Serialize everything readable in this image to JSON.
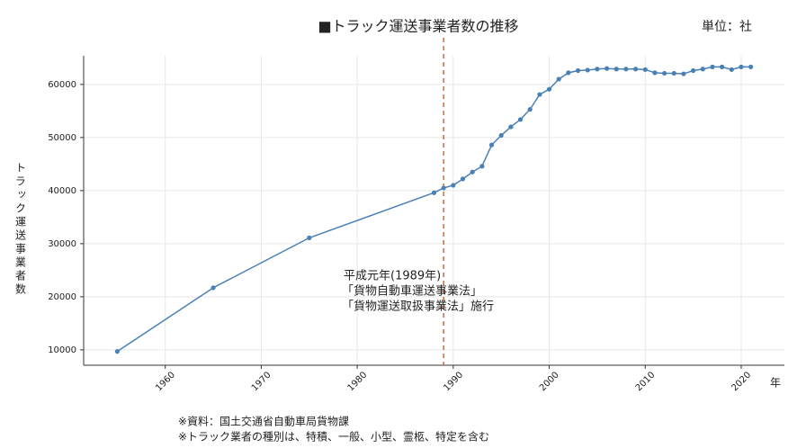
{
  "chart_data": {
    "type": "line",
    "title": "■トラック運送事業者数の推移",
    "unit_label": "単位：社",
    "y_label": "トラック運送事業者数",
    "x_label": "年",
    "x": [
      1955,
      1965,
      1975,
      1988,
      1989,
      1990,
      1991,
      1992,
      1993,
      1994,
      1995,
      1996,
      1997,
      1998,
      1999,
      2000,
      2001,
      2002,
      2003,
      2004,
      2005,
      2006,
      2007,
      2008,
      2009,
      2010,
      2011,
      2012,
      2013,
      2014,
      2015,
      2016,
      2017,
      2018,
      2019,
      2020,
      2021
    ],
    "series": [
      {
        "color": "#4a80b4",
        "values": [
          9700,
          21700,
          31100,
          39600,
          40500,
          41000,
          42200,
          43500,
          44600,
          48600,
          50400,
          52000,
          53400,
          55300,
          58100,
          59100,
          61000,
          62200,
          62600,
          62700,
          62900,
          63000,
          62900,
          62900,
          62900,
          62800,
          62200,
          62100,
          62100,
          62000,
          62600,
          62900,
          63300,
          63300,
          62800,
          63300,
          63300
        ]
      }
    ],
    "xlim": [
      1951.5,
      2024.5
    ],
    "ylim": [
      7100,
      65400
    ],
    "xticks": [
      1960,
      1970,
      1980,
      1990,
      2000,
      2010,
      2020
    ],
    "yticks": [
      10000,
      20000,
      30000,
      40000,
      50000,
      60000
    ],
    "grid": true,
    "reference_line": {
      "x": 1989,
      "color": "#e0622a"
    },
    "annotation": [
      "平成元年(1989年)",
      "「貨物自動車運送事業法」",
      "「貨物運送取扱事業法」施行"
    ],
    "notes": [
      "※資料：国土交通省自動車局貨物課",
      "※トラック業者の種別は、特積、一般、小型、霊柩、特定を含む"
    ]
  }
}
